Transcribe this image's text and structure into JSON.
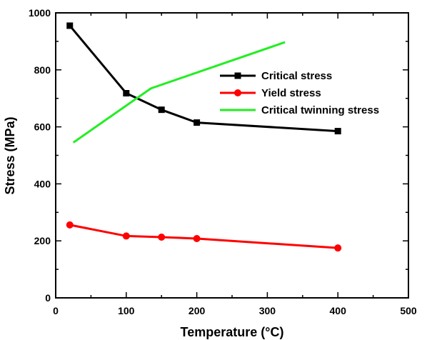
{
  "chart_data": {
    "type": "line",
    "xlabel": "Temperature (°C)",
    "ylabel": "Stress (MPa)",
    "xlim": [
      0,
      500
    ],
    "ylim": [
      0,
      1000
    ],
    "xticks": [
      0,
      100,
      200,
      300,
      400,
      500
    ],
    "yticks": [
      0,
      200,
      400,
      600,
      800,
      1000
    ],
    "grid": false,
    "legend_position": "top-right",
    "series": [
      {
        "name": "Critical stress",
        "color": "#000000",
        "marker": "square",
        "x": [
          20,
          100,
          150,
          200,
          400
        ],
        "y": [
          955,
          718,
          660,
          615,
          585
        ]
      },
      {
        "name": "Yield stress",
        "color": "#ff0000",
        "marker": "circle",
        "x": [
          20,
          100,
          150,
          200,
          400
        ],
        "y": [
          256,
          217,
          213,
          208,
          175
        ]
      },
      {
        "name": "Critical twinning stress",
        "color": "#22ee22",
        "marker": "none",
        "x": [
          25,
          135,
          325
        ],
        "y": [
          545,
          735,
          897
        ]
      }
    ]
  }
}
